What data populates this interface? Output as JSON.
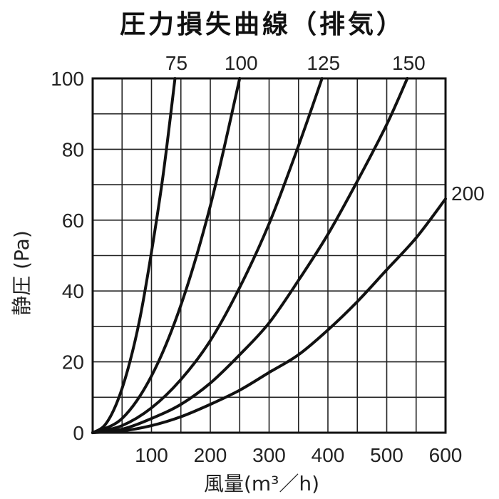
{
  "chart_data": {
    "type": "line",
    "title": "圧力損失曲線（排気）",
    "xlabel": "風量(m³／h)",
    "ylabel": "静圧 (Pa)",
    "xlim": [
      0,
      600
    ],
    "ylim": [
      0,
      100
    ],
    "xticks": [
      100,
      200,
      300,
      400,
      500,
      600
    ],
    "yticks": [
      0,
      20,
      40,
      60,
      80,
      100
    ],
    "x_grid_step": 50,
    "y_grid_step": 10,
    "grid": true,
    "series": [
      {
        "name": "75",
        "x": [
          0,
          20,
          40,
          60,
          80,
          100,
          120,
          140
        ],
        "y": [
          0,
          2,
          8,
          18,
          32,
          51,
          73,
          100
        ]
      },
      {
        "name": "100",
        "x": [
          0,
          50,
          100,
          150,
          200,
          250
        ],
        "y": [
          0,
          4,
          16,
          36,
          64,
          100
        ]
      },
      {
        "name": "125",
        "x": [
          0,
          50,
          100,
          150,
          200,
          250,
          300,
          350,
          390
        ],
        "y": [
          0,
          2,
          7,
          15,
          26,
          41,
          59,
          81,
          100
        ]
      },
      {
        "name": "150",
        "x": [
          0,
          50,
          100,
          150,
          200,
          250,
          300,
          350,
          400,
          450,
          500,
          535
        ],
        "y": [
          0,
          1,
          4,
          8,
          14,
          22,
          31,
          43,
          56,
          71,
          87,
          100
        ]
      },
      {
        "name": "200",
        "x": [
          0,
          50,
          100,
          150,
          200,
          250,
          300,
          350,
          400,
          450,
          500,
          550,
          600
        ],
        "y": [
          0,
          0.5,
          2,
          4.5,
          8,
          12,
          17,
          22,
          29,
          37,
          46,
          55,
          66
        ]
      }
    ]
  }
}
